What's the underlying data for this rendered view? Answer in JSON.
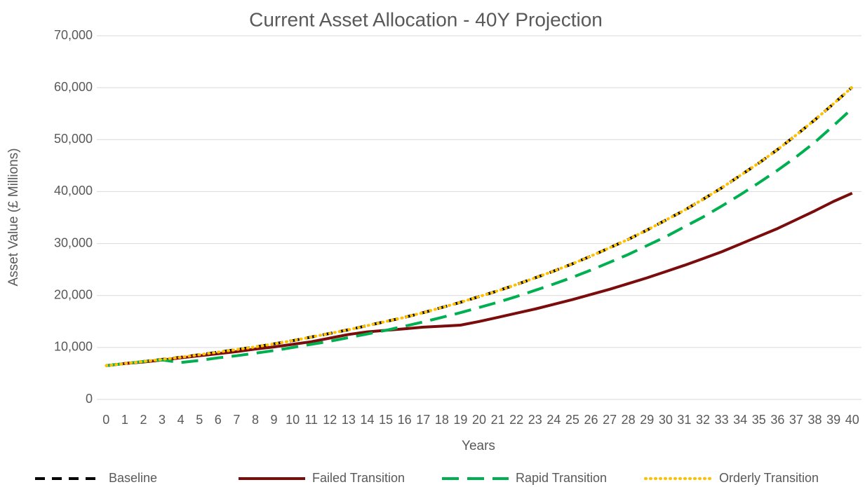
{
  "chart_data": {
    "type": "line",
    "title": "Current Asset Allocation - 40Y Projection",
    "x_label": "Years",
    "y_label": "Asset Value (£ Millions)",
    "categories": [
      "0",
      "1",
      "2",
      "3",
      "4",
      "5",
      "6",
      "7",
      "8",
      "9",
      "10",
      "11",
      "12",
      "13",
      "14",
      "15",
      "16",
      "17",
      "18",
      "19",
      "20",
      "21",
      "22",
      "23",
      "24",
      "25",
      "26",
      "27",
      "28",
      "29",
      "30",
      "31",
      "32",
      "33",
      "34",
      "35",
      "36",
      "37",
      "38",
      "39",
      "40"
    ],
    "series": [
      {
        "name": "Baseline",
        "color": "#000000",
        "dash": "14 10",
        "width": 4,
        "values": [
          6500,
          6900,
          7300,
          7700,
          8100,
          8600,
          9100,
          9600,
          10100,
          10700,
          11300,
          12000,
          12700,
          13400,
          14200,
          15000,
          15800,
          16700,
          17700,
          18700,
          19800,
          20900,
          22100,
          23400,
          24700,
          26100,
          27600,
          29200,
          30800,
          32600,
          34500,
          36400,
          38500,
          40700,
          43100,
          45500,
          48100,
          50900,
          53800,
          56900,
          60100
        ]
      },
      {
        "name": "Failed Transition",
        "color": "#7b0c0c",
        "dash": "none",
        "width": 4,
        "values": [
          6500,
          6900,
          7200,
          7600,
          8000,
          8400,
          8800,
          9200,
          9700,
          10100,
          10600,
          11100,
          11800,
          12500,
          13000,
          13300,
          13600,
          13900,
          14100,
          14300,
          15000,
          15800,
          16600,
          17400,
          18300,
          19200,
          20200,
          21200,
          22300,
          23400,
          24600,
          25800,
          27100,
          28400,
          29900,
          31400,
          32900,
          34600,
          36300,
          38100,
          39700
        ]
      },
      {
        "name": "Rapid Transition",
        "color": "#00b050",
        "dash": "24 12",
        "width": 4,
        "values": [
          6500,
          6900,
          7300,
          7600,
          7100,
          7500,
          8000,
          8400,
          8900,
          9400,
          10000,
          10600,
          11200,
          11900,
          12600,
          13300,
          14100,
          14900,
          15800,
          16700,
          17700,
          18700,
          19800,
          21000,
          22200,
          23500,
          24900,
          26400,
          27900,
          29600,
          31300,
          33200,
          35100,
          37200,
          39400,
          41700,
          44100,
          46700,
          49500,
          52700,
          56000
        ]
      },
      {
        "name": "Orderly Transition",
        "color": "#ffc000",
        "dash": "1 6",
        "width": 4,
        "values": [
          6500,
          6900,
          7300,
          7700,
          8100,
          8600,
          9100,
          9600,
          10100,
          10700,
          11300,
          12000,
          12700,
          13400,
          14200,
          15000,
          15800,
          16700,
          17700,
          18700,
          19800,
          20900,
          22100,
          23400,
          24700,
          26100,
          27600,
          29200,
          30800,
          32600,
          34500,
          36400,
          38500,
          40700,
          43100,
          45500,
          48100,
          50900,
          53800,
          56900,
          60100
        ]
      }
    ],
    "ylim": [
      0,
      70000
    ],
    "yticks": [
      0,
      {
        "value": 10000,
        "label": "10,000"
      },
      {
        "value": 20000,
        "label": "20,000"
      },
      {
        "value": 30000,
        "label": "30,000"
      },
      {
        "value": 40000,
        "label": "40,000"
      },
      {
        "value": 50000,
        "label": "50,000"
      },
      {
        "value": 60000,
        "label": "60,000"
      },
      {
        "value": 70000,
        "label": "70,000"
      }
    ],
    "grid": true,
    "legend": "bottom"
  }
}
